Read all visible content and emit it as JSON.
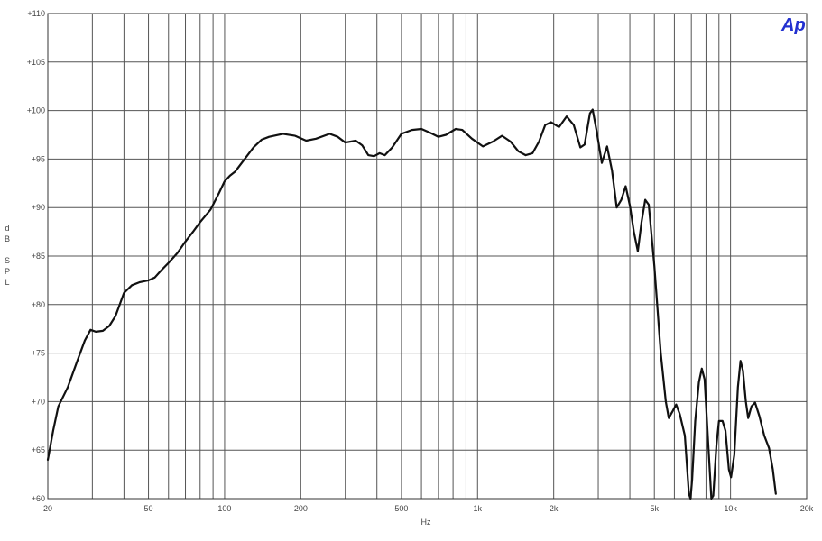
{
  "logo_text": "Ap",
  "colors": {
    "grid": "#555555",
    "curve": "#111111",
    "logo": "#2230d0",
    "background": "#ffffff"
  },
  "chart_data": {
    "type": "line",
    "xscale": "log",
    "xlim": [
      20,
      20000
    ],
    "ylim": [
      60,
      110
    ],
    "grid": true,
    "xlabel": "Hz",
    "ylabel_letters": [
      "d",
      "B",
      "",
      "S",
      "P",
      "L"
    ],
    "xticks": [
      {
        "v": 20,
        "label": "20"
      },
      {
        "v": 50,
        "label": "50"
      },
      {
        "v": 100,
        "label": "100"
      },
      {
        "v": 200,
        "label": "200"
      },
      {
        "v": 500,
        "label": "500"
      },
      {
        "v": 1000,
        "label": "1k"
      },
      {
        "v": 2000,
        "label": "2k"
      },
      {
        "v": 5000,
        "label": "5k"
      },
      {
        "v": 10000,
        "label": "10k"
      },
      {
        "v": 20000,
        "label": "20k"
      }
    ],
    "xgrid_values": [
      20,
      30,
      40,
      50,
      60,
      70,
      80,
      90,
      100,
      200,
      300,
      400,
      500,
      600,
      700,
      800,
      900,
      1000,
      2000,
      3000,
      4000,
      5000,
      6000,
      7000,
      8000,
      9000,
      10000,
      20000
    ],
    "yticks": [
      {
        "v": 60,
        "label": "+60"
      },
      {
        "v": 65,
        "label": "+65"
      },
      {
        "v": 70,
        "label": "+70"
      },
      {
        "v": 75,
        "label": "+75"
      },
      {
        "v": 80,
        "label": "+80"
      },
      {
        "v": 85,
        "label": "+85"
      },
      {
        "v": 90,
        "label": "+90"
      },
      {
        "v": 95,
        "label": "+95"
      },
      {
        "v": 100,
        "label": "+100"
      },
      {
        "v": 105,
        "label": "+105"
      },
      {
        "v": 110,
        "label": "+110"
      }
    ],
    "series": [
      {
        "points": [
          [
            20,
            64
          ],
          [
            21,
            67
          ],
          [
            22,
            69.5
          ],
          [
            24,
            71.5
          ],
          [
            26,
            74
          ],
          [
            28,
            76.3
          ],
          [
            29.5,
            77.4
          ],
          [
            31,
            77.2
          ],
          [
            33,
            77.3
          ],
          [
            35,
            77.8
          ],
          [
            37,
            78.8
          ],
          [
            40,
            81.2
          ],
          [
            43,
            82
          ],
          [
            46,
            82.3
          ],
          [
            50,
            82.5
          ],
          [
            53,
            82.8
          ],
          [
            56,
            83.5
          ],
          [
            60,
            84.3
          ],
          [
            65,
            85.3
          ],
          [
            70,
            86.5
          ],
          [
            75,
            87.5
          ],
          [
            80,
            88.5
          ],
          [
            88,
            89.8
          ],
          [
            95,
            91.5
          ],
          [
            100,
            92.7
          ],
          [
            105,
            93.3
          ],
          [
            110,
            93.7
          ],
          [
            120,
            95
          ],
          [
            130,
            96.2
          ],
          [
            140,
            97
          ],
          [
            150,
            97.3
          ],
          [
            170,
            97.6
          ],
          [
            190,
            97.4
          ],
          [
            210,
            96.9
          ],
          [
            230,
            97.1
          ],
          [
            260,
            97.6
          ],
          [
            280,
            97.3
          ],
          [
            300,
            96.7
          ],
          [
            330,
            96.9
          ],
          [
            350,
            96.4
          ],
          [
            370,
            95.4
          ],
          [
            390,
            95.3
          ],
          [
            410,
            95.6
          ],
          [
            430,
            95.4
          ],
          [
            460,
            96.2
          ],
          [
            500,
            97.6
          ],
          [
            550,
            98
          ],
          [
            600,
            98.1
          ],
          [
            650,
            97.7
          ],
          [
            700,
            97.3
          ],
          [
            750,
            97.5
          ],
          [
            820,
            98.1
          ],
          [
            870,
            98
          ],
          [
            950,
            97.1
          ],
          [
            1050,
            96.3
          ],
          [
            1150,
            96.8
          ],
          [
            1250,
            97.4
          ],
          [
            1350,
            96.8
          ],
          [
            1450,
            95.8
          ],
          [
            1550,
            95.4
          ],
          [
            1650,
            95.6
          ],
          [
            1750,
            96.8
          ],
          [
            1850,
            98.5
          ],
          [
            1950,
            98.8
          ],
          [
            2100,
            98.3
          ],
          [
            2250,
            99.4
          ],
          [
            2400,
            98.5
          ],
          [
            2550,
            96.2
          ],
          [
            2650,
            96.5
          ],
          [
            2780,
            99.7
          ],
          [
            2850,
            100.1
          ],
          [
            2950,
            98
          ],
          [
            3100,
            94.6
          ],
          [
            3250,
            96.3
          ],
          [
            3400,
            93.8
          ],
          [
            3550,
            90
          ],
          [
            3700,
            90.8
          ],
          [
            3850,
            92.2
          ],
          [
            4000,
            90.2
          ],
          [
            4150,
            87.5
          ],
          [
            4300,
            85.5
          ],
          [
            4450,
            88.5
          ],
          [
            4600,
            90.8
          ],
          [
            4750,
            90.3
          ],
          [
            5000,
            84
          ],
          [
            5300,
            75
          ],
          [
            5550,
            70
          ],
          [
            5700,
            68.3
          ],
          [
            5900,
            69
          ],
          [
            6100,
            69.7
          ],
          [
            6300,
            68.7
          ],
          [
            6600,
            66.5
          ],
          [
            6850,
            60.5
          ],
          [
            6950,
            58
          ],
          [
            7050,
            62
          ],
          [
            7250,
            68
          ],
          [
            7500,
            72
          ],
          [
            7700,
            73.4
          ],
          [
            7900,
            72.3
          ],
          [
            8150,
            66
          ],
          [
            8400,
            59.5
          ],
          [
            8550,
            60.3
          ],
          [
            8800,
            65.5
          ],
          [
            9000,
            68
          ],
          [
            9300,
            68
          ],
          [
            9550,
            67
          ],
          [
            9850,
            63
          ],
          [
            10050,
            62.2
          ],
          [
            10350,
            64.5
          ],
          [
            10700,
            71.5
          ],
          [
            10950,
            74.2
          ],
          [
            11200,
            73.2
          ],
          [
            11500,
            70
          ],
          [
            11750,
            68.3
          ],
          [
            12100,
            69.5
          ],
          [
            12500,
            69.9
          ],
          [
            13000,
            68.5
          ],
          [
            13600,
            66.5
          ],
          [
            14200,
            65.2
          ],
          [
            14700,
            63
          ],
          [
            15100,
            60.5
          ]
        ]
      }
    ]
  }
}
